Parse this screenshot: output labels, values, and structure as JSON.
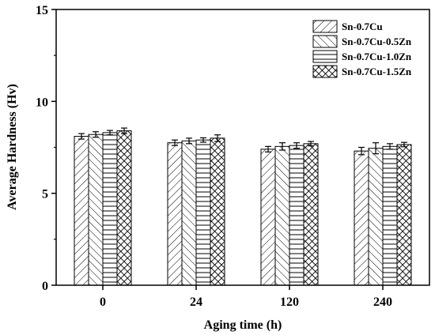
{
  "chart_data": {
    "type": "bar",
    "xlabel": "Aging time (h)",
    "ylabel": "Average Hardness (Hv)",
    "ylim": [
      0,
      15
    ],
    "yticks": [
      0,
      5,
      10,
      15
    ],
    "categories": [
      "0",
      "24",
      "120",
      "240"
    ],
    "series": [
      {
        "name": "Sn-0.7Cu",
        "pattern": "diag-forward",
        "values": [
          8.1,
          7.75,
          7.4,
          7.3
        ],
        "errors": [
          0.15,
          0.15,
          0.15,
          0.2
        ]
      },
      {
        "name": "Sn-0.7Cu-0.5Zn",
        "pattern": "diag-back",
        "values": [
          8.2,
          7.85,
          7.55,
          7.45
        ],
        "errors": [
          0.15,
          0.15,
          0.2,
          0.3
        ]
      },
      {
        "name": "Sn-0.7Cu-1.0Zn",
        "pattern": "horizontal",
        "values": [
          8.3,
          7.9,
          7.6,
          7.55
        ],
        "errors": [
          0.12,
          0.12,
          0.15,
          0.15
        ]
      },
      {
        "name": "Sn-0.7Cu-1.5Zn",
        "pattern": "crosshatch",
        "values": [
          8.4,
          8.0,
          7.7,
          7.65
        ],
        "errors": [
          0.15,
          0.18,
          0.12,
          0.12
        ]
      }
    ],
    "legend_position": "top-right",
    "grid": false
  }
}
